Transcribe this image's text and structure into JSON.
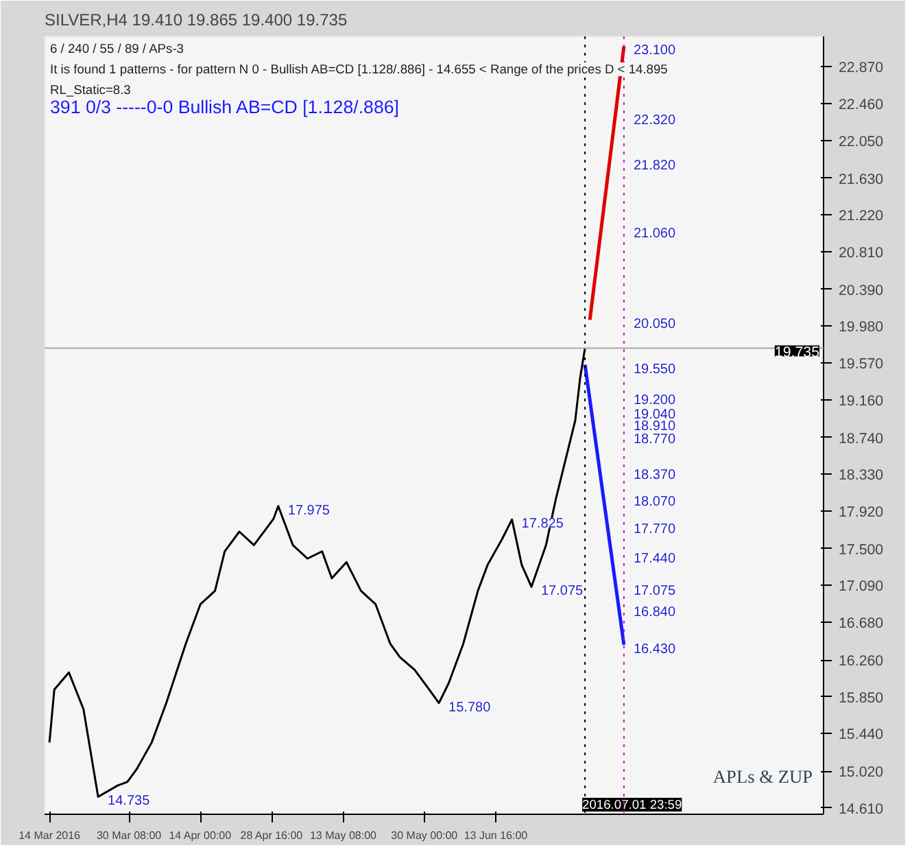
{
  "chart_data": {
    "type": "line",
    "title": "SILVER,H4  19.410 19.865 19.400 19.735",
    "annotations": [
      "6 / 240 / 55 / 89 / APs-3",
      "It is found 1 patterns  -  for pattern N 0 - Bullish AB=CD [1.128/.886] - 14.655 < Range of the prices D < 14.895",
      "RL_Static=8.3",
      "391    0/3        -----0-0      Bullish AB=CD [1.128/.886]",
      "APLs & ZUP",
      {
        "text": "17.975",
        "x": "2016-04-30",
        "y": 17.975
      },
      {
        "text": "17.825",
        "x": "2016-06-17",
        "y": 17.825
      },
      {
        "text": "15.780",
        "x": "2016-06-02",
        "y": 15.78
      },
      {
        "text": "17.075",
        "x": "2016-06-21",
        "y": 17.075
      },
      {
        "text": "14.735",
        "x": "2016-03-24",
        "y": 14.735
      },
      {
        "text": "23.100",
        "x": "2016-07-10",
        "y": 23.1
      },
      {
        "text": "22.320",
        "x": "2016-07-10",
        "y": 22.32
      },
      {
        "text": "21.820",
        "x": "2016-07-10",
        "y": 21.82
      },
      {
        "text": "21.060",
        "x": "2016-07-10",
        "y": 21.06
      },
      {
        "text": "20.050",
        "x": "2016-07-10",
        "y": 20.05
      },
      {
        "text": "19.550",
        "x": "2016-07-10",
        "y": 19.55
      },
      {
        "text": "19.200",
        "x": "2016-07-10",
        "y": 19.2
      },
      {
        "text": "19.040",
        "x": "2016-07-10",
        "y": 19.04
      },
      {
        "text": "18.910",
        "x": "2016-07-10",
        "y": 18.91
      },
      {
        "text": "18.770",
        "x": "2016-07-10",
        "y": 18.77
      },
      {
        "text": "18.370",
        "x": "2016-07-10",
        "y": 18.37
      },
      {
        "text": "18.070",
        "x": "2016-07-10",
        "y": 18.07
      },
      {
        "text": "17.770",
        "x": "2016-07-10",
        "y": 17.77
      },
      {
        "text": "17.440",
        "x": "2016-07-10",
        "y": 17.44
      },
      {
        "text": "17.075",
        "x": "2016-07-10",
        "y": 17.075
      },
      {
        "text": "16.840",
        "x": "2016-07-10",
        "y": 16.84
      },
      {
        "text": "16.430",
        "x": "2016-07-10",
        "y": 16.43
      }
    ],
    "xlim": [
      "2016-03-13",
      "2016-08-20"
    ],
    "ylim": [
      14.54,
      23.21
    ],
    "xticks": [
      {
        "value": "2016-03-14",
        "label": "14 Mar 2016"
      },
      {
        "value": "2016-03-30T08:00",
        "label": "30 Mar 08:00"
      },
      {
        "value": "2016-04-14T00:00",
        "label": "14 Apr 00:00"
      },
      {
        "value": "2016-04-28T16:00",
        "label": "28 Apr 16:00"
      },
      {
        "value": "2016-05-13T08:00",
        "label": "13 May 08:00"
      },
      {
        "value": "2016-05-30T00:00",
        "label": "30 May 00:00"
      },
      {
        "value": "2016-06-13T16:00",
        "label": "13 Jun 16:00"
      }
    ],
    "yticks": [
      {
        "value": 14.61,
        "label": "14.610"
      },
      {
        "value": 15.02,
        "label": "15.020"
      },
      {
        "value": 15.44,
        "label": "15.440"
      },
      {
        "value": 15.85,
        "label": "15.850"
      },
      {
        "value": 16.26,
        "label": "16.260"
      },
      {
        "value": 16.68,
        "label": "16.680"
      },
      {
        "value": 17.09,
        "label": "17.090"
      },
      {
        "value": 17.5,
        "label": "17.500"
      },
      {
        "value": 17.92,
        "label": "17.920"
      },
      {
        "value": 18.33,
        "label": "18.330"
      },
      {
        "value": 18.74,
        "label": "18.740"
      },
      {
        "value": 19.16,
        "label": "19.160"
      },
      {
        "value": 19.57,
        "label": "19.570"
      },
      {
        "value": 19.98,
        "label": "19.980"
      },
      {
        "value": 20.39,
        "label": "20.390"
      },
      {
        "value": 20.81,
        "label": "20.810"
      },
      {
        "value": 21.22,
        "label": "21.220"
      },
      {
        "value": 21.63,
        "label": "21.630"
      },
      {
        "value": 22.05,
        "label": "22.050"
      },
      {
        "value": 22.46,
        "label": "22.460"
      },
      {
        "value": 22.87,
        "label": "22.870"
      }
    ],
    "ref_lines": [
      {
        "axis": "y",
        "value": 19.735,
        "label": "19.735",
        "color": "#aaaaaa",
        "line_style": "solid"
      },
      {
        "axis": "x",
        "value": "2016-07-01T23:59",
        "label": "2016.07.01 23:59",
        "color": "#000000",
        "line_style": "dotted"
      },
      {
        "axis": "x",
        "value": "2016-07-10",
        "label": null,
        "color": "#cc00cc",
        "line_style": "dotted"
      }
    ],
    "series": [
      {
        "color": "#000000",
        "x": [
          "2016-03-14",
          "2016-03-15",
          "2016-03-18",
          "2016-03-21",
          "2016-03-24",
          "2016-03-28",
          "2016-03-30",
          "2016-04-01",
          "2016-04-04",
          "2016-04-07",
          "2016-04-11",
          "2016-04-14",
          "2016-04-17",
          "2016-04-19",
          "2016-04-22",
          "2016-04-25",
          "2016-04-29",
          "2016-04-30",
          "2016-05-03",
          "2016-05-06",
          "2016-05-09",
          "2016-05-11",
          "2016-05-14",
          "2016-05-17",
          "2016-05-20",
          "2016-05-23",
          "2016-05-25",
          "2016-05-28",
          "2016-05-31",
          "2016-06-02",
          "2016-06-04",
          "2016-06-07",
          "2016-06-10",
          "2016-06-12",
          "2016-06-15",
          "2016-06-17",
          "2016-06-19",
          "2016-06-21",
          "2016-06-24",
          "2016-06-26",
          "2016-06-28",
          "2016-06-30",
          "2016-07-01",
          "2016-07-01T23:59"
        ],
        "values": [
          15.34,
          15.93,
          16.12,
          15.71,
          14.735,
          14.86,
          14.9,
          15.05,
          15.34,
          15.78,
          16.44,
          16.88,
          17.03,
          17.47,
          17.69,
          17.54,
          17.83,
          17.975,
          17.54,
          17.39,
          17.47,
          17.17,
          17.35,
          17.03,
          16.88,
          16.44,
          16.29,
          16.15,
          15.93,
          15.78,
          16.0,
          16.44,
          17.03,
          17.32,
          17.61,
          17.825,
          17.32,
          17.075,
          17.54,
          18.05,
          18.49,
          18.93,
          19.4,
          19.735
        ]
      },
      {
        "color": "#e00000",
        "x": [
          "2016-07-03",
          "2016-07-10"
        ],
        "values": [
          20.05,
          23.1
        ]
      },
      {
        "color": "#1a1aff",
        "x": [
          "2016-07-02",
          "2016-07-10"
        ],
        "values": [
          19.55,
          16.43
        ]
      }
    ],
    "grid": false,
    "marker": "none",
    "line_style": "solid"
  }
}
